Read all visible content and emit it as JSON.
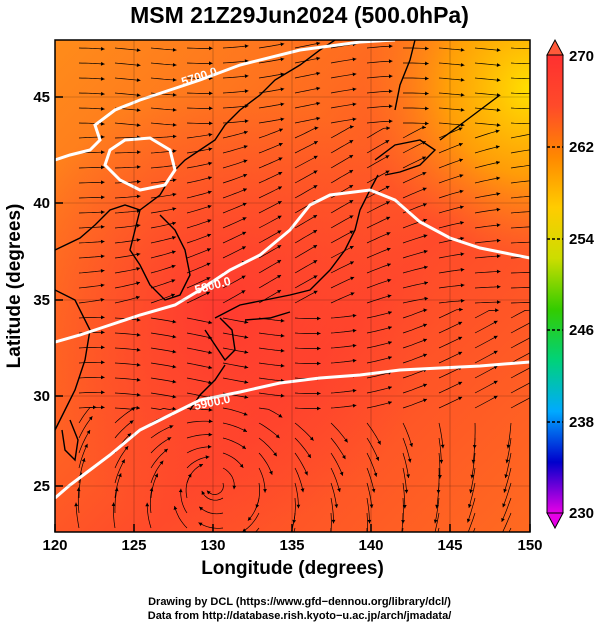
{
  "title": "MSM 21Z29Jun2024 (500.0hPa)",
  "axes": {
    "xlabel": "Longitude (degrees)",
    "ylabel": "Latitude  (degrees)",
    "xticks": [
      "120",
      "125",
      "130",
      "135",
      "140",
      "145",
      "150"
    ],
    "yticks": [
      "25",
      "30",
      "35",
      "40",
      "45"
    ]
  },
  "colorbar": {
    "ticks": [
      "270",
      "262",
      "254",
      "246",
      "238",
      "230"
    ],
    "range": [
      230,
      270
    ],
    "colors": [
      "#e600e6",
      "#0000cc",
      "#00aaff",
      "#00d27a",
      "#33cc00",
      "#ccdd00",
      "#ffcc00",
      "#ff8800",
      "#ff4a2a",
      "#ff3030"
    ]
  },
  "contours": [
    {
      "label": "5700.0",
      "color": "#ffffff"
    },
    {
      "label": "5800.0",
      "color": "#ffffff"
    },
    {
      "label": "5900.0",
      "color": "#ffffff"
    }
  ],
  "credits": {
    "line1": "Drawing by DCL (https://www.gfd−dennou.org/library/dcl/)",
    "line2": "Data from http://database.rish.kyoto−u.ac.jp/arch/jmadata/"
  }
}
